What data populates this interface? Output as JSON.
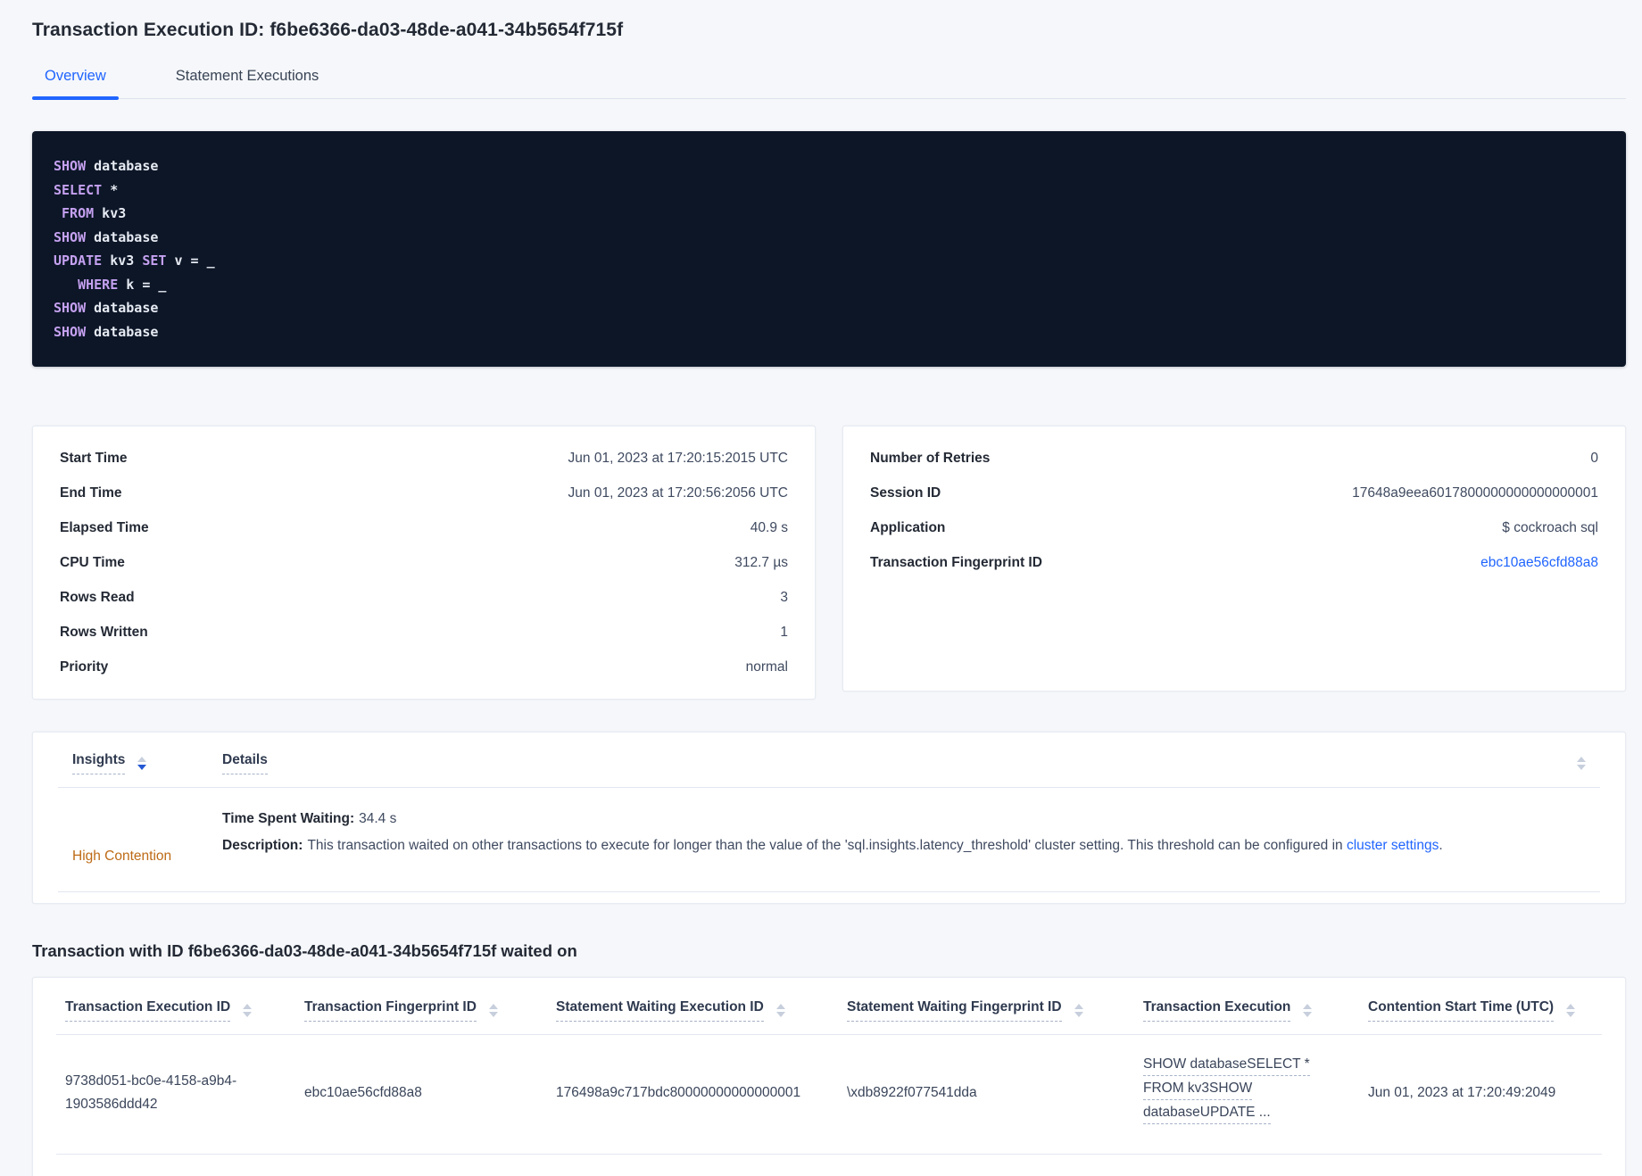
{
  "colors": {
    "accent_blue": "#2065ff",
    "sorted_arrow_blue": "#2458d4",
    "insight_orange": "#bd6a15",
    "code_keyword_purple": "#c5a1f0",
    "code_background": "#0c1627",
    "page_background": "#f5f7fa"
  },
  "page": {
    "title": "Transaction Execution ID: f6be6366-da03-48de-a041-34b5654f715f",
    "tabs": [
      {
        "label": "Overview",
        "active": true
      },
      {
        "label": "Statement Executions",
        "active": false
      }
    ]
  },
  "sql": {
    "lines": [
      [
        {
          "t": "SHOW",
          "k": true
        },
        {
          "t": " database",
          "k": false
        }
      ],
      [
        {
          "t": "SELECT",
          "k": true
        },
        {
          "t": " *",
          "k": false
        }
      ],
      [
        {
          "t": " ",
          "k": false
        },
        {
          "t": "FROM",
          "k": true
        },
        {
          "t": " kv3",
          "k": false
        }
      ],
      [
        {
          "t": "SHOW",
          "k": true
        },
        {
          "t": " database",
          "k": false
        }
      ],
      [
        {
          "t": "UPDATE",
          "k": true
        },
        {
          "t": " kv3 ",
          "k": false
        },
        {
          "t": "SET",
          "k": true
        },
        {
          "t": " v = _",
          "k": false
        }
      ],
      [
        {
          "t": "   ",
          "k": false
        },
        {
          "t": "WHERE",
          "k": true
        },
        {
          "t": " k = _",
          "k": false
        }
      ],
      [
        {
          "t": "SHOW",
          "k": true
        },
        {
          "t": " database",
          "k": false
        }
      ],
      [
        {
          "t": "SHOW",
          "k": true
        },
        {
          "t": " database",
          "k": false
        }
      ]
    ]
  },
  "summary_left": {
    "rows": [
      {
        "label": "Start Time",
        "value": "Jun 01, 2023 at 17:20:15:2015 UTC"
      },
      {
        "label": "End Time",
        "value": "Jun 01, 2023 at 17:20:56:2056 UTC"
      },
      {
        "label": "Elapsed Time",
        "value": "40.9 s"
      },
      {
        "label": "CPU Time",
        "value": "312.7 µs"
      },
      {
        "label": "Rows Read",
        "value": "3"
      },
      {
        "label": "Rows Written",
        "value": "1"
      },
      {
        "label": "Priority",
        "value": "normal"
      }
    ]
  },
  "summary_right": {
    "rows": [
      {
        "label": "Number of Retries",
        "value": "0"
      },
      {
        "label": "Session ID",
        "value": "17648a9eea6017800000000000000001"
      },
      {
        "label": "Application",
        "value": "$ cockroach sql"
      },
      {
        "label": "Transaction Fingerprint ID",
        "value": "ebc10ae56cfd88a8",
        "link": true
      }
    ]
  },
  "insights": {
    "insights_header": "Insights",
    "details_header": "Details",
    "row": {
      "insight": "High Contention",
      "waiting_label": "Time Spent Waiting:",
      "waiting_value": "34.4 s",
      "description_label": "Description:",
      "description_text": "This transaction waited on other transactions to execute for longer than the value of the 'sql.insights.latency_threshold' cluster setting. This threshold can be configured in ",
      "description_link": "cluster settings",
      "description_suffix": "."
    }
  },
  "waited_on": {
    "heading": "Transaction with ID f6be6366-da03-48de-a041-34b5654f715f waited on",
    "columns": [
      "Transaction Execution ID",
      "Transaction Fingerprint ID",
      "Statement Waiting Execution ID",
      "Statement Waiting Fingerprint ID",
      "Transaction Execution",
      "Contention Start Time (UTC)"
    ],
    "row": {
      "transaction_execution_id": "9738d051-bc0e-4158-a9b4-1903586ddd42",
      "transaction_fingerprint_id": "ebc10ae56cfd88a8",
      "statement_waiting_execution_id": "176498a9c717bdc80000000000000001",
      "statement_waiting_fingerprint_id": "\\xdb8922f077541dda",
      "transaction_execution_lines": [
        "SHOW databaseSELECT *",
        "FROM kv3SHOW",
        "databaseUPDATE ..."
      ],
      "contention_start_time": "Jun 01, 2023 at 17:20:49:2049"
    }
  }
}
